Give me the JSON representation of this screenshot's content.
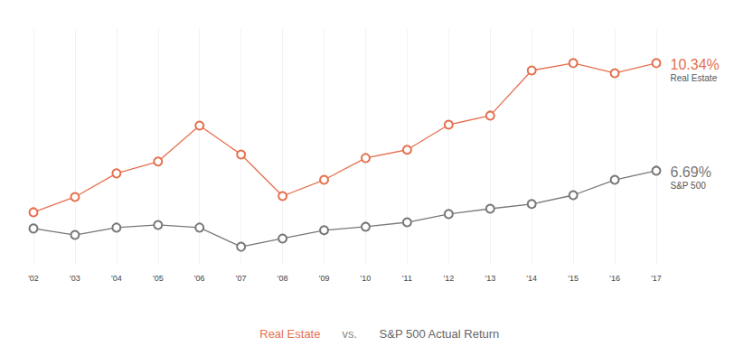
{
  "chart_data": {
    "type": "line",
    "categories": [
      "'02",
      "'03",
      "'04",
      "'05",
      "'06",
      "'07",
      "'08",
      "'09",
      "'10",
      "'11",
      "'12",
      "'13",
      "'14",
      "'15",
      "'16",
      "'17"
    ],
    "series": [
      {
        "name": "Real Estate",
        "color": "#e5704f",
        "end_label": "10.34%",
        "values": [
          5.28,
          5.8,
          6.6,
          7.0,
          8.22,
          7.24,
          5.83,
          6.38,
          7.12,
          7.4,
          8.25,
          8.56,
          10.09,
          10.34,
          10.0,
          10.34
        ]
      },
      {
        "name": "S&P 500",
        "color": "#777777",
        "end_label": "6.69%",
        "values": [
          4.73,
          4.51,
          4.76,
          4.85,
          4.76,
          4.11,
          4.39,
          4.67,
          4.79,
          4.94,
          5.22,
          5.4,
          5.56,
          5.86,
          6.38,
          6.69
        ]
      }
    ],
    "caption": [
      {
        "text": "Real Estate",
        "color": "#e5704f"
      },
      {
        "text": "vs.",
        "color": "#888888"
      },
      {
        "text": "S&P 500 Actual Return",
        "color": "#666666"
      }
    ],
    "ylim": [
      3.5,
      11.5
    ],
    "grid": true,
    "marker": "circle",
    "tick_labels": "x"
  }
}
